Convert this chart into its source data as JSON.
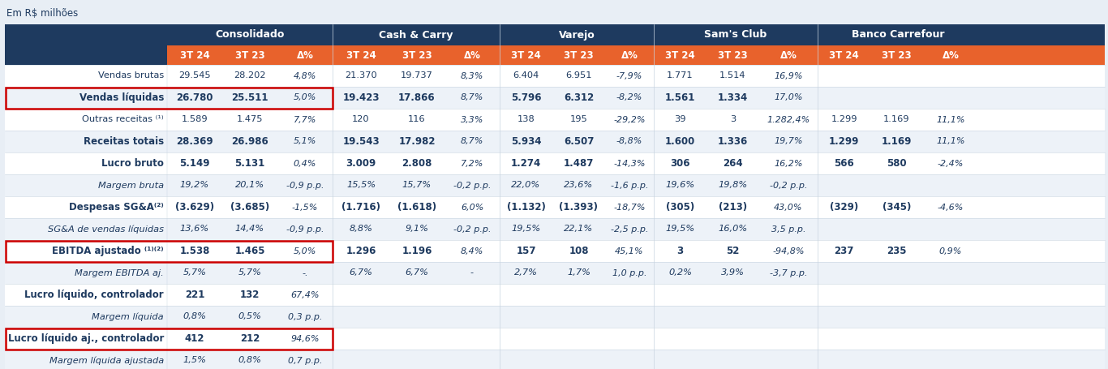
{
  "header_bg_dark": "#1e3a5f",
  "header_bg_orange": "#e8622c",
  "body_text_color": "#1e3a5f",
  "red_border_color": "#cc0000",
  "bg_light": "#edf2f8",
  "bg_white": "#ffffff",
  "sections": [
    "Consolidado",
    "Cash & Carry",
    "Varejo",
    "Sam's Club",
    "Banco Carrefour"
  ],
  "col_headers": [
    "3T 24",
    "3T 23",
    "Δ%"
  ],
  "rows": [
    {
      "label": "Vendas brutas",
      "bold": false,
      "italic": false,
      "red_box": false,
      "data": [
        "29.545",
        "28.202",
        "4,8%",
        "21.370",
        "19.737",
        "8,3%",
        "6.404",
        "6.951",
        "-7,9%",
        "1.771",
        "1.514",
        "16,9%",
        "",
        "",
        ""
      ]
    },
    {
      "label": "Vendas líquidas",
      "bold": true,
      "italic": false,
      "red_box": true,
      "data": [
        "26.780",
        "25.511",
        "5,0%",
        "19.423",
        "17.866",
        "8,7%",
        "5.796",
        "6.312",
        "-8,2%",
        "1.561",
        "1.334",
        "17,0%",
        "",
        "",
        ""
      ]
    },
    {
      "label": "Outras receitas ⁽¹⁾",
      "bold": false,
      "italic": false,
      "red_box": false,
      "data": [
        "1.589",
        "1.475",
        "7,7%",
        "120",
        "116",
        "3,3%",
        "138",
        "195",
        "-29,2%",
        "39",
        "3",
        "1.282,4%",
        "1.299",
        "1.169",
        "11,1%"
      ]
    },
    {
      "label": "Receitas totais",
      "bold": true,
      "italic": false,
      "red_box": false,
      "data": [
        "28.369",
        "26.986",
        "5,1%",
        "19.543",
        "17.982",
        "8,7%",
        "5.934",
        "6.507",
        "-8,8%",
        "1.600",
        "1.336",
        "19,7%",
        "1.299",
        "1.169",
        "11,1%"
      ]
    },
    {
      "label": "Lucro bruto",
      "bold": true,
      "italic": false,
      "red_box": false,
      "data": [
        "5.149",
        "5.131",
        "0,4%",
        "3.009",
        "2.808",
        "7,2%",
        "1.274",
        "1.487",
        "-14,3%",
        "306",
        "264",
        "16,2%",
        "566",
        "580",
        "-2,4%"
      ]
    },
    {
      "label": "Margem bruta",
      "bold": false,
      "italic": true,
      "red_box": false,
      "data": [
        "19,2%",
        "20,1%",
        "-0,9 p.p.",
        "15,5%",
        "15,7%",
        "-0,2 p.p.",
        "22,0%",
        "23,6%",
        "-1,6 p.p.",
        "19,6%",
        "19,8%",
        "-0,2 p.p.",
        "",
        "",
        ""
      ]
    },
    {
      "label": "Despesas SG&A⁽²⁾",
      "bold": true,
      "italic": false,
      "red_box": false,
      "data": [
        "(3.629)",
        "(3.685)",
        "-1,5%",
        "(1.716)",
        "(1.618)",
        "6,0%",
        "(1.132)",
        "(1.393)",
        "-18,7%",
        "(305)",
        "(213)",
        "43,0%",
        "(329)",
        "(345)",
        "-4,6%"
      ]
    },
    {
      "label": "SG&A de vendas líquidas",
      "bold": false,
      "italic": true,
      "red_box": false,
      "data": [
        "13,6%",
        "14,4%",
        "-0,9 p.p.",
        "8,8%",
        "9,1%",
        "-0,2 p.p.",
        "19,5%",
        "22,1%",
        "-2,5 p.p.",
        "19,5%",
        "16,0%",
        "3,5 p.p.",
        "",
        "",
        ""
      ]
    },
    {
      "label": "EBITDA ajustado ⁽¹⁾⁽²⁾",
      "bold": true,
      "italic": false,
      "red_box": true,
      "data": [
        "1.538",
        "1.465",
        "5,0%",
        "1.296",
        "1.196",
        "8,4%",
        "157",
        "108",
        "45,1%",
        "3",
        "52",
        "-94,8%",
        "237",
        "235",
        "0,9%"
      ]
    },
    {
      "label": "Margem EBITDA aj.",
      "bold": false,
      "italic": true,
      "red_box": false,
      "data": [
        "5,7%",
        "5,7%",
        "-.",
        "6,7%",
        "6,7%",
        "-",
        "2,7%",
        "1,7%",
        "1,0 p.p.",
        "0,2%",
        "3,9%",
        "-3,7 p.p.",
        "",
        "",
        ""
      ]
    },
    {
      "label": "Lucro líquido, controlador",
      "bold": true,
      "italic": false,
      "red_box": false,
      "data": [
        "221",
        "132",
        "67,4%",
        "",
        "",
        "",
        "",
        "",
        "",
        "",
        "",
        "",
        "",
        "",
        ""
      ]
    },
    {
      "label": "Margem líquida",
      "bold": false,
      "italic": true,
      "red_box": false,
      "data": [
        "0,8%",
        "0,5%",
        "0,3 p.p.",
        "",
        "",
        "",
        "",
        "",
        "",
        "",
        "",
        "",
        "",
        "",
        ""
      ]
    },
    {
      "label": "Lucro líquido aj., controlador",
      "bold": true,
      "italic": false,
      "red_box": true,
      "data": [
        "412",
        "212",
        "94,6%",
        "",
        "",
        "",
        "",
        "",
        "",
        "",
        "",
        "",
        "",
        "",
        ""
      ]
    },
    {
      "label": "Margem líquida ajustada",
      "bold": false,
      "italic": true,
      "red_box": false,
      "data": [
        "1,5%",
        "0,8%",
        "0,7 p.p.",
        "",
        "",
        "",
        "",
        "",
        "",
        "",
        "",
        "",
        "",
        "",
        ""
      ]
    }
  ]
}
